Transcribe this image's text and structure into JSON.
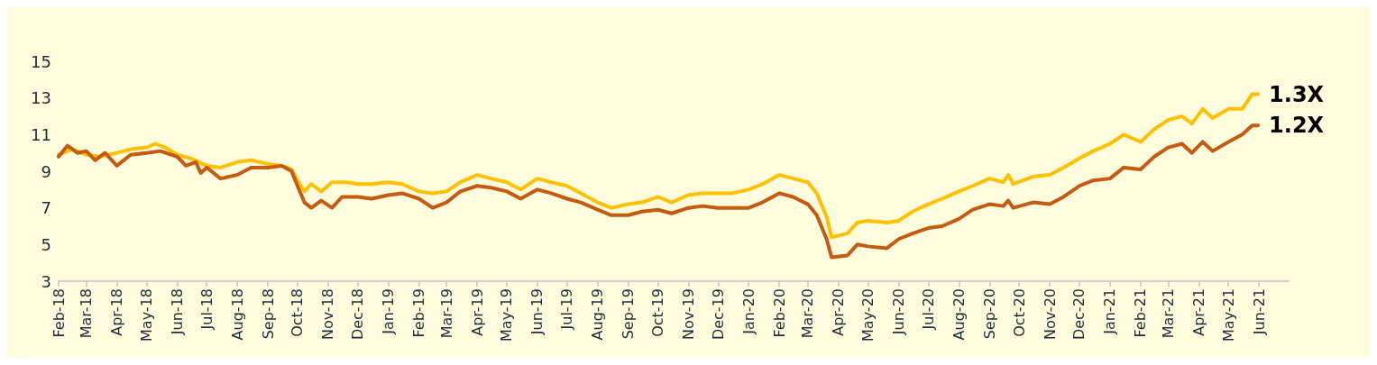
{
  "chart_data": {
    "type": "line",
    "ylim": [
      3,
      15
    ],
    "yticks": [
      3,
      5,
      7,
      9,
      11,
      13,
      15
    ],
    "xlim": [
      "2018-02",
      "2021-07"
    ],
    "xticks": [
      {
        "value": "2018-02",
        "label": "Feb-18"
      },
      {
        "value": "2018-03",
        "label": "Mar-18"
      },
      {
        "value": "2018-04",
        "label": "Apr-18"
      },
      {
        "value": "2018-05",
        "label": "May-18"
      },
      {
        "value": "2018-06",
        "label": "Jun-18"
      },
      {
        "value": "2018-07",
        "label": "Jul-18"
      },
      {
        "value": "2018-08",
        "label": "Aug-18"
      },
      {
        "value": "2018-09",
        "label": "Sep-18"
      },
      {
        "value": "2018-10",
        "label": "Oct-18"
      },
      {
        "value": "2018-11",
        "label": "Nov-18"
      },
      {
        "value": "2018-12",
        "label": "Dec-18"
      },
      {
        "value": "2019-01",
        "label": "Jan-19"
      },
      {
        "value": "2019-02",
        "label": "Feb-19"
      },
      {
        "value": "2019-03",
        "label": "Mar-19"
      },
      {
        "value": "2019-04",
        "label": "Apr-19"
      },
      {
        "value": "2019-05",
        "label": "May-19"
      },
      {
        "value": "2019-06",
        "label": "Jun-19"
      },
      {
        "value": "2019-07",
        "label": "Jul-19"
      },
      {
        "value": "2019-08",
        "label": "Aug-19"
      },
      {
        "value": "2019-09",
        "label": "Sep-19"
      },
      {
        "value": "2019-10",
        "label": "Oct-19"
      },
      {
        "value": "2019-11",
        "label": "Nov-19"
      },
      {
        "value": "2019-12",
        "label": "Dec-19"
      },
      {
        "value": "2020-01",
        "label": "Jan-20"
      },
      {
        "value": "2020-02",
        "label": "Feb-20"
      },
      {
        "value": "2020-03",
        "label": "Mar-20"
      },
      {
        "value": "2020-04",
        "label": "Apr-20"
      },
      {
        "value": "2020-05",
        "label": "May-20"
      },
      {
        "value": "2020-06",
        "label": "Jun-20"
      },
      {
        "value": "2020-07",
        "label": "Jul-20"
      },
      {
        "value": "2020-08",
        "label": "Aug-20"
      },
      {
        "value": "2020-09",
        "label": "Sep-20"
      },
      {
        "value": "2020-10",
        "label": "Oct-20"
      },
      {
        "value": "2020-11",
        "label": "Nov-20"
      },
      {
        "value": "2020-12",
        "label": "Dec-20"
      },
      {
        "value": "2021-01",
        "label": "Jan-21"
      },
      {
        "value": "2021-02",
        "label": "Feb-21"
      },
      {
        "value": "2021-03",
        "label": "Mar-21"
      },
      {
        "value": "2021-04",
        "label": "Apr-21"
      },
      {
        "value": "2021-05",
        "label": "May-21"
      },
      {
        "value": "2021-06",
        "label": "Jun-21"
      }
    ],
    "grid": false,
    "marker": "none",
    "line_style": "solid",
    "annotations": [
      {
        "text": "1.3X",
        "x": "2021-05-31",
        "y": 13.2
      },
      {
        "text": "1.2X",
        "x": "2021-05-31",
        "y": 11.5
      }
    ],
    "series": [
      {
        "color": "#ffc000",
        "x": [
          "2018-02-01",
          "2018-02-15",
          "2018-03-01",
          "2018-03-15",
          "2018-04-01",
          "2018-04-15",
          "2018-05-01",
          "2018-05-10",
          "2018-05-20",
          "2018-06-01",
          "2018-06-15",
          "2018-07-01",
          "2018-07-15",
          "2018-08-01",
          "2018-08-15",
          "2018-09-01",
          "2018-09-15",
          "2018-09-25",
          "2018-10-01",
          "2018-10-08",
          "2018-10-15",
          "2018-10-25",
          "2018-11-05",
          "2018-11-20",
          "2018-12-01",
          "2018-12-15",
          "2019-01-01",
          "2019-01-15",
          "2019-02-01",
          "2019-02-15",
          "2019-03-01",
          "2019-03-15",
          "2019-04-01",
          "2019-04-15",
          "2019-05-01",
          "2019-05-15",
          "2019-06-01",
          "2019-06-15",
          "2019-07-01",
          "2019-07-15",
          "2019-08-01",
          "2019-08-15",
          "2019-09-01",
          "2019-09-15",
          "2019-10-01",
          "2019-10-15",
          "2019-11-01",
          "2019-11-15",
          "2019-12-01",
          "2019-12-15",
          "2020-01-01",
          "2020-01-15",
          "2020-02-01",
          "2020-02-15",
          "2020-03-01",
          "2020-03-10",
          "2020-03-20",
          "2020-03-25",
          "2020-04-10",
          "2020-04-20",
          "2020-05-01",
          "2020-05-20",
          "2020-06-01",
          "2020-06-15",
          "2020-07-01",
          "2020-07-15",
          "2020-08-01",
          "2020-08-15",
          "2020-09-01",
          "2020-09-15",
          "2020-09-20",
          "2020-09-25",
          "2020-10-15",
          "2020-11-01",
          "2020-11-15",
          "2020-12-01",
          "2020-12-15",
          "2021-01-01",
          "2021-01-15",
          "2021-02-01",
          "2021-02-15",
          "2021-03-01",
          "2021-03-15",
          "2021-03-25",
          "2021-04-05",
          "2021-04-15",
          "2021-05-01",
          "2021-05-15",
          "2021-05-25",
          "2021-05-31"
        ],
        "values": [
          9.9,
          10.2,
          9.9,
          9.8,
          10.0,
          10.2,
          10.3,
          10.5,
          10.3,
          9.9,
          9.7,
          9.3,
          9.2,
          9.5,
          9.6,
          9.4,
          9.3,
          9.1,
          8.5,
          7.9,
          8.3,
          7.9,
          8.4,
          8.4,
          8.3,
          8.3,
          8.4,
          8.3,
          7.9,
          7.8,
          7.9,
          8.4,
          8.8,
          8.6,
          8.4,
          8.0,
          8.6,
          8.4,
          8.2,
          7.8,
          7.3,
          7.0,
          7.2,
          7.3,
          7.6,
          7.3,
          7.7,
          7.8,
          7.8,
          7.8,
          8.0,
          8.3,
          8.8,
          8.6,
          8.4,
          7.8,
          6.5,
          5.4,
          5.6,
          6.2,
          6.3,
          6.2,
          6.3,
          6.8,
          7.2,
          7.5,
          7.9,
          8.2,
          8.6,
          8.4,
          8.8,
          8.3,
          8.7,
          8.8,
          9.2,
          9.7,
          10.1,
          10.5,
          11.0,
          10.6,
          11.3,
          11.8,
          12.0,
          11.6,
          12.4,
          11.9,
          12.4,
          12.4,
          13.2,
          13.2
        ]
      },
      {
        "color": "#c55a11",
        "x": [
          "2018-02-01",
          "2018-02-10",
          "2018-02-20",
          "2018-03-01",
          "2018-03-10",
          "2018-03-20",
          "2018-04-01",
          "2018-04-15",
          "2018-05-01",
          "2018-05-15",
          "2018-06-01",
          "2018-06-10",
          "2018-06-20",
          "2018-06-25",
          "2018-07-01",
          "2018-07-15",
          "2018-08-01",
          "2018-08-15",
          "2018-09-01",
          "2018-09-15",
          "2018-09-25",
          "2018-10-01",
          "2018-10-08",
          "2018-10-15",
          "2018-10-25",
          "2018-11-05",
          "2018-11-15",
          "2018-12-01",
          "2018-12-15",
          "2019-01-01",
          "2019-01-15",
          "2019-02-01",
          "2019-02-15",
          "2019-03-01",
          "2019-03-15",
          "2019-04-01",
          "2019-04-15",
          "2019-05-01",
          "2019-05-15",
          "2019-06-01",
          "2019-06-15",
          "2019-07-01",
          "2019-07-15",
          "2019-08-01",
          "2019-08-15",
          "2019-09-01",
          "2019-09-15",
          "2019-10-01",
          "2019-10-15",
          "2019-11-01",
          "2019-11-15",
          "2019-12-01",
          "2019-12-15",
          "2020-01-01",
          "2020-01-15",
          "2020-02-01",
          "2020-02-15",
          "2020-03-01",
          "2020-03-10",
          "2020-03-20",
          "2020-03-25",
          "2020-04-10",
          "2020-04-20",
          "2020-05-01",
          "2020-05-20",
          "2020-06-01",
          "2020-06-15",
          "2020-07-01",
          "2020-07-15",
          "2020-08-01",
          "2020-08-15",
          "2020-09-01",
          "2020-09-15",
          "2020-09-20",
          "2020-09-25",
          "2020-10-15",
          "2020-11-01",
          "2020-11-15",
          "2020-12-01",
          "2020-12-15",
          "2021-01-01",
          "2021-01-15",
          "2021-02-01",
          "2021-02-15",
          "2021-03-01",
          "2021-03-15",
          "2021-03-25",
          "2021-04-05",
          "2021-04-15",
          "2021-05-01",
          "2021-05-15",
          "2021-05-25",
          "2021-05-31"
        ],
        "values": [
          9.8,
          10.4,
          10.0,
          10.1,
          9.6,
          10.0,
          9.3,
          9.9,
          10.0,
          10.1,
          9.8,
          9.3,
          9.5,
          8.9,
          9.2,
          8.6,
          8.8,
          9.2,
          9.2,
          9.3,
          9.0,
          8.2,
          7.3,
          7.0,
          7.4,
          7.0,
          7.6,
          7.6,
          7.5,
          7.7,
          7.8,
          7.5,
          7.0,
          7.3,
          7.9,
          8.2,
          8.1,
          7.9,
          7.5,
          8.0,
          7.8,
          7.5,
          7.3,
          6.9,
          6.6,
          6.6,
          6.8,
          6.9,
          6.7,
          7.0,
          7.1,
          7.0,
          7.0,
          7.0,
          7.3,
          7.8,
          7.6,
          7.2,
          6.6,
          5.3,
          4.3,
          4.4,
          5.0,
          4.9,
          4.8,
          5.3,
          5.6,
          5.9,
          6.0,
          6.4,
          6.9,
          7.2,
          7.1,
          7.4,
          7.0,
          7.3,
          7.2,
          7.6,
          8.2,
          8.5,
          8.6,
          9.2,
          9.1,
          9.8,
          10.3,
          10.5,
          10.0,
          10.6,
          10.1,
          10.6,
          11.0,
          11.5,
          11.5
        ]
      }
    ]
  }
}
